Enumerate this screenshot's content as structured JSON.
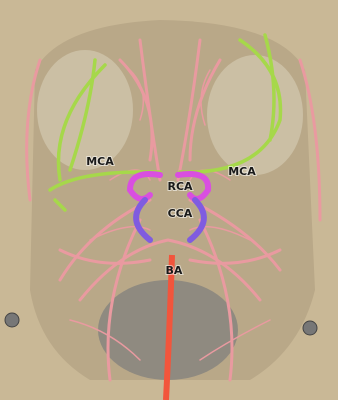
{
  "labels": [
    {
      "text": "MCA"
    },
    {
      "text": "MCA"
    },
    {
      "text": "RCA"
    },
    {
      "text": "CCA"
    },
    {
      "text": "BA"
    }
  ]
}
